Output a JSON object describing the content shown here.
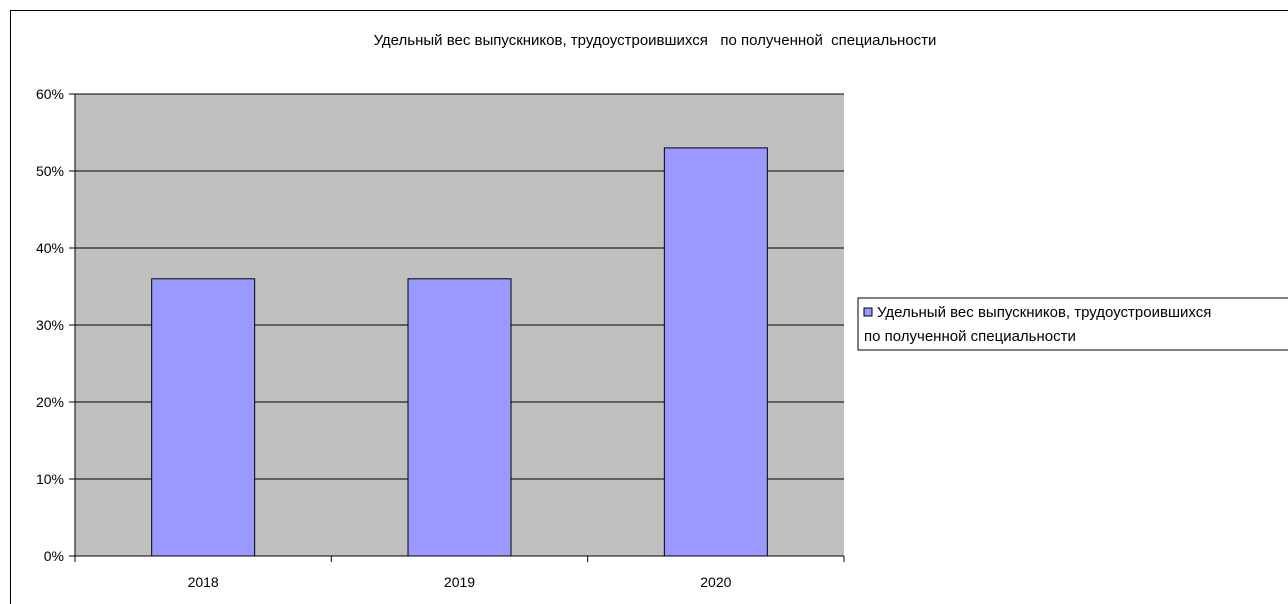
{
  "chart_data": {
    "type": "bar",
    "title": "Удельный вес выпускников, трудоустроившихся   по полученной  специальности",
    "categories": [
      "2018",
      "2019",
      "2020"
    ],
    "series": [
      {
        "name": "Удельный вес выпускников, трудоустроившихся   по полученной  специальности",
        "values": [
          0.36,
          0.36,
          0.53
        ]
      }
    ],
    "ylim": [
      0,
      0.6
    ],
    "yticks": [
      0,
      0.1,
      0.2,
      0.3,
      0.4,
      0.5,
      0.6
    ],
    "ytick_labels": [
      "0%",
      "10%",
      "20%",
      "30%",
      "40%",
      "50%",
      "60%"
    ],
    "xlabel": "",
    "ylabel": "",
    "grid": true,
    "legend_position": "right",
    "legend_lines": [
      "Удельный вес выпускников, трудоустроившихся",
      "по полученной  специальности"
    ],
    "colors": {
      "bar_fill": "#9999ff",
      "plot_background": "#c0c0c0",
      "gridline": "#000000"
    }
  }
}
